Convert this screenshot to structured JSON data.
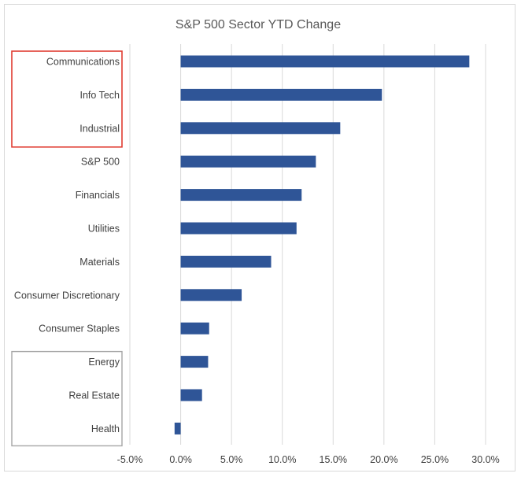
{
  "chart_data": {
    "type": "bar",
    "orientation": "horizontal",
    "title": "S&P 500 Sector YTD Change",
    "categories": [
      "Communications",
      "Info Tech",
      "Industrial",
      "S&P 500",
      "Financials",
      "Utilities",
      "Materials",
      "Consumer Discretionary",
      "Consumer Staples",
      "Energy",
      "Real Estate",
      "Health"
    ],
    "values": [
      28.4,
      19.8,
      15.7,
      13.3,
      11.9,
      11.4,
      8.9,
      6.0,
      2.8,
      2.7,
      2.1,
      -0.6
    ],
    "value_unit": "%",
    "xlim": [
      -5,
      30
    ],
    "xticks": [
      -5,
      0,
      5,
      10,
      15,
      20,
      25,
      30
    ],
    "xtick_labels": [
      "-5.0%",
      "0.0%",
      "5.0%",
      "10.0%",
      "15.0%",
      "20.0%",
      "25.0%",
      "30.0%"
    ],
    "xlabel": "",
    "ylabel": "",
    "grid": "vertical",
    "legend": "none",
    "highlight_groups": [
      {
        "color": "#e03c31",
        "categories": [
          "Communications",
          "Info Tech",
          "Industrial"
        ]
      },
      {
        "color": "#a6a6a6",
        "categories": [
          "Energy",
          "Real Estate",
          "Health"
        ]
      }
    ],
    "bar_color": "#2f5597"
  }
}
